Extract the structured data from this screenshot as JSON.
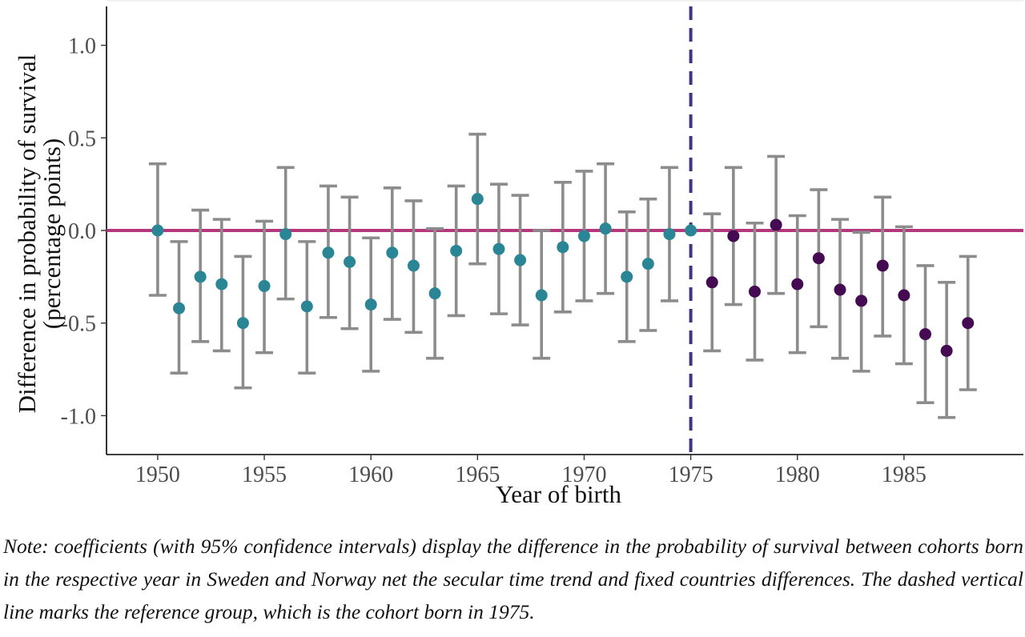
{
  "chart_data": {
    "type": "scatter",
    "subtype": "coefficient-plot-with-error-bars",
    "xlabel": "Year of birth",
    "ylabel": [
      "Difference in probability of survival",
      "(percentage points)"
    ],
    "xlim": [
      1947.6,
      1990.6
    ],
    "ylim": [
      -1.21,
      1.21
    ],
    "x_ticks": [
      "1950",
      "1955",
      "1960",
      "1965",
      "1970",
      "1975",
      "1980",
      "1985"
    ],
    "y_ticks": [
      "1.0",
      "0.5",
      "0.0",
      "-0.5",
      "-1.0"
    ],
    "reference_line": {
      "type": "horizontal",
      "y": 0.0,
      "color": "#b5387c"
    },
    "reference_year_line": {
      "type": "vertical",
      "x": 1975,
      "style": "dashed",
      "color": "#3d3582"
    },
    "errorbar_color": "#8c8c8c",
    "grid": false,
    "legend": "none",
    "series": [
      {
        "color": "#2a8595",
        "points": [
          {
            "x": 1950,
            "y": 0.0,
            "lo": -0.35,
            "hi": 0.36
          },
          {
            "x": 1951,
            "y": -0.42,
            "lo": -0.77,
            "hi": -0.06
          },
          {
            "x": 1952,
            "y": -0.25,
            "lo": -0.6,
            "hi": 0.11
          },
          {
            "x": 1953,
            "y": -0.29,
            "lo": -0.65,
            "hi": 0.06
          },
          {
            "x": 1954,
            "y": -0.5,
            "lo": -0.85,
            "hi": -0.14
          },
          {
            "x": 1955,
            "y": -0.3,
            "lo": -0.66,
            "hi": 0.05
          },
          {
            "x": 1956,
            "y": -0.02,
            "lo": -0.37,
            "hi": 0.34
          },
          {
            "x": 1957,
            "y": -0.41,
            "lo": -0.77,
            "hi": -0.06
          },
          {
            "x": 1958,
            "y": -0.12,
            "lo": -0.47,
            "hi": 0.24
          },
          {
            "x": 1959,
            "y": -0.17,
            "lo": -0.53,
            "hi": 0.18
          },
          {
            "x": 1960,
            "y": -0.4,
            "lo": -0.76,
            "hi": -0.04
          },
          {
            "x": 1961,
            "y": -0.12,
            "lo": -0.48,
            "hi": 0.23
          },
          {
            "x": 1962,
            "y": -0.19,
            "lo": -0.55,
            "hi": 0.16
          },
          {
            "x": 1963,
            "y": -0.34,
            "lo": -0.69,
            "hi": 0.01
          },
          {
            "x": 1964,
            "y": -0.11,
            "lo": -0.46,
            "hi": 0.24
          },
          {
            "x": 1965,
            "y": 0.17,
            "lo": -0.18,
            "hi": 0.52
          },
          {
            "x": 1966,
            "y": -0.1,
            "lo": -0.45,
            "hi": 0.25
          },
          {
            "x": 1967,
            "y": -0.16,
            "lo": -0.51,
            "hi": 0.19
          },
          {
            "x": 1968,
            "y": -0.35,
            "lo": -0.69,
            "hi": 0.0
          },
          {
            "x": 1969,
            "y": -0.09,
            "lo": -0.44,
            "hi": 0.26
          },
          {
            "x": 1970,
            "y": -0.03,
            "lo": -0.38,
            "hi": 0.32
          },
          {
            "x": 1971,
            "y": 0.01,
            "lo": -0.34,
            "hi": 0.36
          },
          {
            "x": 1972,
            "y": -0.25,
            "lo": -0.6,
            "hi": 0.1
          },
          {
            "x": 1973,
            "y": -0.18,
            "lo": -0.54,
            "hi": 0.17
          },
          {
            "x": 1974,
            "y": -0.02,
            "lo": -0.38,
            "hi": 0.34
          },
          {
            "x": 1975,
            "y": 0.0,
            "lo": 0.0,
            "hi": 0.0
          }
        ]
      },
      {
        "color": "#440a52",
        "points": [
          {
            "x": 1976,
            "y": -0.28,
            "lo": -0.65,
            "hi": 0.09
          },
          {
            "x": 1977,
            "y": -0.03,
            "lo": -0.4,
            "hi": 0.34
          },
          {
            "x": 1978,
            "y": -0.33,
            "lo": -0.7,
            "hi": 0.04
          },
          {
            "x": 1979,
            "y": 0.03,
            "lo": -0.34,
            "hi": 0.4
          },
          {
            "x": 1980,
            "y": -0.29,
            "lo": -0.66,
            "hi": 0.08
          },
          {
            "x": 1981,
            "y": -0.15,
            "lo": -0.52,
            "hi": 0.22
          },
          {
            "x": 1982,
            "y": -0.32,
            "lo": -0.69,
            "hi": 0.06
          },
          {
            "x": 1983,
            "y": -0.38,
            "lo": -0.76,
            "hi": -0.01
          },
          {
            "x": 1984,
            "y": -0.19,
            "lo": -0.57,
            "hi": 0.18
          },
          {
            "x": 1985,
            "y": -0.35,
            "lo": -0.72,
            "hi": 0.02
          },
          {
            "x": 1986,
            "y": -0.56,
            "lo": -0.93,
            "hi": -0.19
          },
          {
            "x": 1987,
            "y": -0.65,
            "lo": -1.01,
            "hi": -0.28
          },
          {
            "x": 1988,
            "y": -0.5,
            "lo": -0.86,
            "hi": -0.14
          }
        ]
      }
    ]
  },
  "note": "Note: coefficients (with 95% confidence intervals) display the difference in the probability of survival between cohorts born in the respective year in Sweden and Norway net the secular time trend and fixed countries differences. The dashed vertical line marks the reference group, which is the cohort born in 1975."
}
